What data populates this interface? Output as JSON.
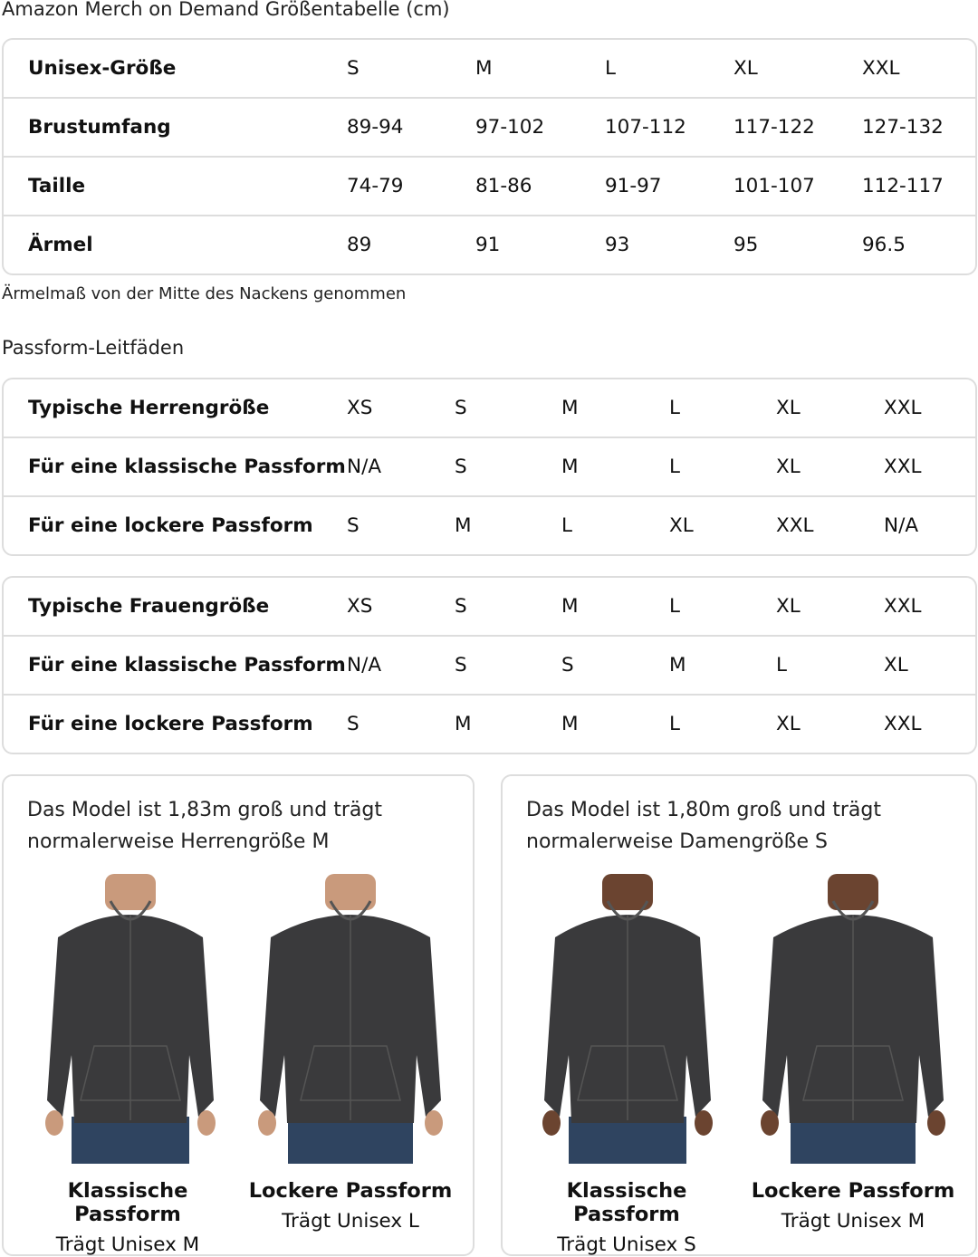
{
  "title": "Amazon Merch on Demand Größentabelle (cm)",
  "unisex_table": {
    "rows": [
      {
        "label": "Unisex-Größe",
        "values": [
          "S",
          "M",
          "L",
          "XL",
          "XXL"
        ]
      },
      {
        "label": "Brustumfang",
        "values": [
          "89-94",
          "97-102",
          "107-112",
          "117-122",
          "127-132"
        ]
      },
      {
        "label": "Taille",
        "values": [
          "74-79",
          "81-86",
          "91-97",
          "101-107",
          "112-117"
        ]
      },
      {
        "label": "Ärmel",
        "values": [
          "89",
          "91",
          "93",
          "95",
          "96.5"
        ]
      }
    ]
  },
  "note": "Ärmelmaß von der Mitte des Nackens genommen",
  "fit_guide_title": "Passform-Leitfäden",
  "men_table": {
    "rows": [
      {
        "label": "Typische Herrengröße",
        "values": [
          "XS",
          "S",
          "M",
          "L",
          "XL",
          "XXL"
        ]
      },
      {
        "label": "Für eine klassische Passform",
        "values": [
          "N/A",
          "S",
          "M",
          "L",
          "XL",
          "XXL"
        ]
      },
      {
        "label": "Für eine lockere Passform",
        "values": [
          "S",
          "M",
          "L",
          "XL",
          "XXL",
          "N/A"
        ]
      }
    ]
  },
  "women_table": {
    "rows": [
      {
        "label": "Typische Frauengröße",
        "values": [
          "XS",
          "S",
          "M",
          "L",
          "XL",
          "XXL"
        ]
      },
      {
        "label": "Für eine klassische Passform",
        "values": [
          "N/A",
          "S",
          "S",
          "M",
          "L",
          "XL"
        ]
      },
      {
        "label": "Für eine lockere Passform",
        "values": [
          "S",
          "M",
          "M",
          "L",
          "XL",
          "XXL"
        ]
      }
    ]
  },
  "cards": [
    {
      "caption_line1": "Das Model ist 1,83m groß und trägt",
      "caption_line2": "normalerweise Herrengröße M",
      "fits": [
        {
          "title": "Klassische Passform",
          "subtitle": "Trägt Unisex M"
        },
        {
          "title": "Lockere Passform",
          "subtitle": "Trägt Unisex L"
        }
      ]
    },
    {
      "caption_line1": "Das Model ist 1,80m groß und trägt",
      "caption_line2": "normalerweise Damengröße S",
      "fits": [
        {
          "title": "Klassische Passform",
          "subtitle": "Trägt Unisex S"
        },
        {
          "title": "Lockere Passform",
          "subtitle": "Trägt Unisex M"
        }
      ]
    }
  ],
  "colors": {
    "border": "#dddddd",
    "hoodie": "#3a3a3c",
    "jeans": "#2f4460",
    "skin": "#c99a7c",
    "skin_dark": "#6b4430"
  }
}
